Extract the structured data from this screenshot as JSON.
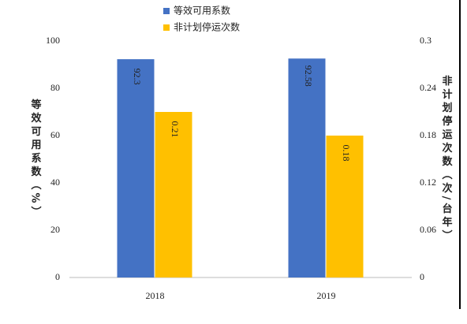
{
  "chart_data": {
    "type": "bar",
    "categories": [
      "2018",
      "2019"
    ],
    "series": [
      {
        "name": "等效可用系数",
        "color": "#4472c4",
        "values": [
          92.3,
          92.58
        ]
      },
      {
        "name": "非计划停运次数",
        "color": "#ffc000",
        "values": [
          0.21,
          0.18
        ],
        "axis": "y2"
      }
    ],
    "ylabel": "等效可用系数（%）",
    "y2label": "非计划停运次数（次/台年）",
    "ylim": [
      0,
      100
    ],
    "yticks": [
      0,
      20,
      40,
      60,
      80,
      100
    ],
    "y2lim": [
      0,
      0.3
    ],
    "y2ticks": [
      0,
      0.06,
      0.12,
      0.18,
      0.24,
      0.3
    ],
    "legend": "top",
    "grid": false
  }
}
